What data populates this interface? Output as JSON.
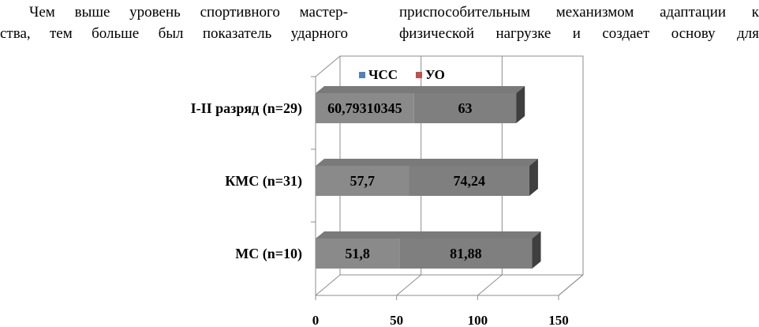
{
  "text": {
    "left_lines": [
      "Чем выше уровень спортивного мастер-",
      "ства, тем больше был показатель ударного"
    ],
    "right_lines": [
      "приспособительным механизмом адаптации к",
      "физической нагрузке и создает основу для"
    ]
  },
  "chart_data": {
    "type": "bar",
    "orientation": "horizontal",
    "stacked": true,
    "three_d": true,
    "categories": [
      "I-II разряд (n=29)",
      "КМС (n=31)",
      "МС (n=10)"
    ],
    "series": [
      {
        "name": "ЧСС",
        "values": [
          60.79310345,
          57.7,
          51.8
        ],
        "labels": [
          "60,79310345",
          "57,7",
          "51,8"
        ],
        "color": "#4f81bd"
      },
      {
        "name": "УО",
        "values": [
          63,
          74.24,
          81.88
        ],
        "labels": [
          "63",
          "74,24",
          "81,88"
        ],
        "color": "#c0504d"
      }
    ],
    "bar_color": "#8a8a8a",
    "xlim": [
      0,
      150
    ],
    "x_ticks": [
      "0",
      "50",
      "100",
      "150"
    ],
    "legend_position": "top",
    "grid": true
  }
}
